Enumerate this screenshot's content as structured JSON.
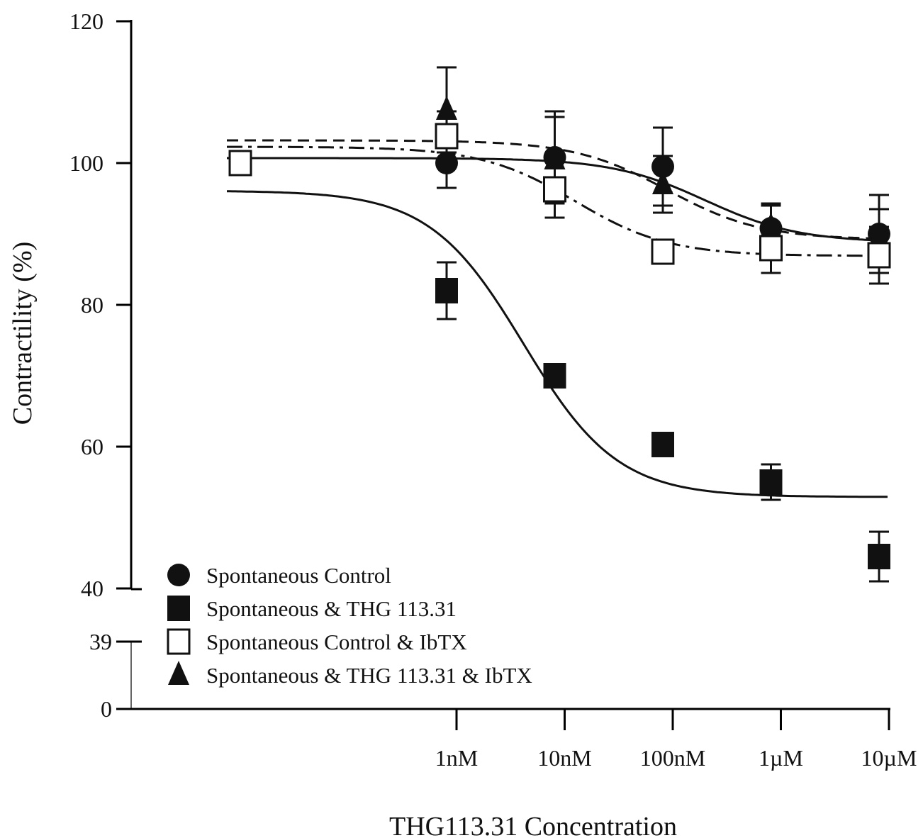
{
  "chart_data": {
    "type": "scatter",
    "xlabel": "THG113.31 Concentration",
    "ylabel": "Contractility (%)",
    "x_categories": [
      "1nM",
      "10nM",
      "100nM",
      "1µM",
      "10µM"
    ],
    "y_ticks_upper": [
      40,
      60,
      80,
      100,
      120
    ],
    "y_ticks_lower": [
      0,
      39
    ],
    "ylim_upper": [
      40,
      120
    ],
    "ylim_lower": [
      0,
      39
    ],
    "axis_break": true,
    "legend_position": "bottom-left",
    "series": [
      {
        "name": "Spontaneous Control",
        "marker": "filled-circle",
        "line_style": "solid",
        "points": [
          {
            "x": "1nM",
            "y": 100,
            "err": 3.5
          },
          {
            "x": "10nM",
            "y": 100.8,
            "err": 6.5
          },
          {
            "x": "100nM",
            "y": 99.5,
            "err": 5.5
          },
          {
            "x": "1µM",
            "y": 90.8,
            "err": 3.5
          },
          {
            "x": "10µM",
            "y": 90,
            "err": 5.5
          }
        ],
        "fit": {
          "top": 100.7,
          "bottom": 88.8,
          "log_ec50": -6.7,
          "hill": 1.0
        }
      },
      {
        "name": "Spontaneous & THG 113.31",
        "marker": "filled-square",
        "line_style": "solid",
        "points": [
          {
            "x": "1nM",
            "y": 82,
            "err": 4
          },
          {
            "x": "10nM",
            "y": 70,
            "err": 0
          },
          {
            "x": "100nM",
            "y": 60.3,
            "err": 0
          },
          {
            "x": "1µM",
            "y": 55,
            "err": 2.5
          },
          {
            "x": "10µM",
            "y": 44.5,
            "err": 3.5
          }
        ],
        "fit": {
          "top": 96.1,
          "bottom": 52.9,
          "log_ec50": -8.38,
          "hill": 1.0
        }
      },
      {
        "name": "Spontaneous Control & IbTX",
        "marker": "open-square",
        "line_style": "dash-dot",
        "points": [
          {
            "x": "1nM",
            "y": 103.8,
            "err": 3.5
          },
          {
            "x": "10nM",
            "y": 96.3,
            "err": 4
          },
          {
            "x": "100nM",
            "y": 87.5,
            "err": 0
          },
          {
            "x": "1µM",
            "y": 88,
            "err": 3.5
          },
          {
            "x": "10µM",
            "y": 87,
            "err": 4
          }
        ],
        "fit": {
          "top": 102.3,
          "bottom": 86.9,
          "log_ec50": -7.9,
          "hill": 1.0
        }
      },
      {
        "name": "Spontaneous & THG 113.31 & IbTX",
        "marker": "filled-triangle",
        "line_style": "dashed",
        "points": [
          {
            "x": "1nM",
            "y": 107.5,
            "err": 6
          },
          {
            "x": "10nM",
            "y": 100.5,
            "err": 6
          },
          {
            "x": "100nM",
            "y": 97,
            "err": 4
          },
          {
            "x": "1µM",
            "y": 91,
            "err": 3
          },
          {
            "x": "10µM",
            "y": 89.5,
            "err": 4
          }
        ],
        "fit": {
          "top": 103.2,
          "bottom": 89.2,
          "log_ec50": -7.05,
          "hill": 1.0
        }
      }
    ],
    "control_point": {
      "y": 100,
      "marker": "open-square"
    }
  }
}
